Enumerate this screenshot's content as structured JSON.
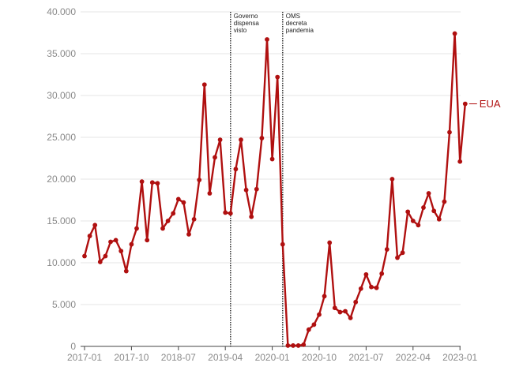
{
  "chart_data": {
    "type": "line",
    "title": "",
    "xlabel": "",
    "ylabel": "",
    "x_start": "2017-01",
    "x_ticks": [
      "2017-01",
      "2017-10",
      "2018-07",
      "2019-04",
      "2020-01",
      "2020-10",
      "2021-07",
      "2022-04",
      "2023-01"
    ],
    "ylim": [
      0,
      40000
    ],
    "y_ticks": [
      "0",
      "5.000",
      "10.000",
      "15.000",
      "20.000",
      "25.000",
      "30.000",
      "35.000",
      "40.000"
    ],
    "grid": "horizontal",
    "colors": {
      "line": "#b01010",
      "grid": "#e6e6e6",
      "axis": "#444444",
      "tick_text": "#8a8a8a",
      "annotation_line": "#222222"
    },
    "series": [
      {
        "name": "EUA",
        "values": [
          10800,
          13200,
          14500,
          10100,
          10800,
          12500,
          12700,
          11400,
          9000,
          12200,
          14100,
          19700,
          12700,
          19600,
          19500,
          14100,
          15000,
          15900,
          17600,
          17200,
          13400,
          15200,
          19900,
          31300,
          18300,
          22600,
          24700,
          16000,
          15900,
          21200,
          24700,
          18700,
          15500,
          18800,
          24900,
          36700,
          22400,
          32200,
          12200,
          100,
          100,
          100,
          200,
          2000,
          2600,
          3800,
          6000,
          12400,
          4600,
          4100,
          4200,
          3400,
          5300,
          6900,
          8600,
          7100,
          7000,
          8700,
          11600,
          20000,
          10600,
          11200,
          16100,
          15000,
          14500,
          16600,
          18300,
          16200,
          15200,
          17300,
          25600,
          37400,
          22100,
          29000
        ]
      }
    ],
    "annotations": [
      {
        "x": "2019-05",
        "lines": [
          "Governo",
          "dispensa",
          "visto"
        ]
      },
      {
        "x": "2020-03",
        "lines": [
          "OMS",
          "decreta",
          "pandemia"
        ]
      }
    ]
  }
}
